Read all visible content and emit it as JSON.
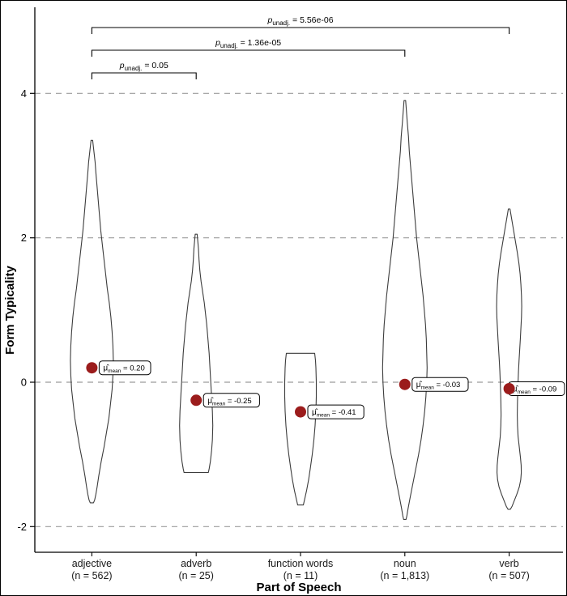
{
  "figure": {
    "background": "#ffffff",
    "border_color": "#000000"
  },
  "chart_data": {
    "type": "violin",
    "title": "",
    "xlabel": "Part of Speech",
    "ylabel": "Form Typicality",
    "ylim": [
      -2.6,
      5.3
    ],
    "yticks": [
      -2,
      0,
      2,
      4
    ],
    "grid": "dashed-horizontal",
    "gridline_color": "#9c9c9c",
    "violin_stroke": "#3c3c3c",
    "mean_dot_color": "#9b1c1c",
    "mu_hat_symbol": "μ̂",
    "mean_subscript": "mean",
    "p_symbol": "p",
    "p_subscript": "unadj.",
    "categories": [
      {
        "label": "adjective",
        "n_label": "(n = 562)",
        "mean": 0.2,
        "mean_text": "= 0.20",
        "range": [
          -1.67,
          3.35
        ],
        "profile": [
          [
            3.35,
            1
          ],
          [
            3.2,
            2.5
          ],
          [
            3.05,
            4
          ],
          [
            2.9,
            5
          ],
          [
            2.7,
            6.5
          ],
          [
            2.5,
            8
          ],
          [
            2.3,
            9.5
          ],
          [
            2.1,
            11
          ],
          [
            1.9,
            13
          ],
          [
            1.7,
            15
          ],
          [
            1.5,
            17
          ],
          [
            1.3,
            19
          ],
          [
            1.1,
            21.5
          ],
          [
            0.9,
            23.5
          ],
          [
            0.7,
            25
          ],
          [
            0.5,
            26
          ],
          [
            0.3,
            26.5
          ],
          [
            0.1,
            26
          ],
          [
            -0.1,
            25
          ],
          [
            -0.3,
            23
          ],
          [
            -0.5,
            21
          ],
          [
            -0.7,
            18
          ],
          [
            -0.9,
            15
          ],
          [
            -1.1,
            11.5
          ],
          [
            -1.3,
            8.5
          ],
          [
            -1.45,
            6.5
          ],
          [
            -1.55,
            5
          ],
          [
            -1.63,
            3.5
          ],
          [
            -1.67,
            2
          ]
        ]
      },
      {
        "label": "adverb",
        "n_label": "(n = 25)",
        "mean": -0.25,
        "mean_text": "= -0.25",
        "range": [
          -1.25,
          2.05
        ],
        "profile": [
          [
            2.05,
            1.2
          ],
          [
            1.95,
            2
          ],
          [
            1.85,
            2.8
          ],
          [
            1.7,
            3.5
          ],
          [
            1.55,
            4.5
          ],
          [
            1.4,
            6
          ],
          [
            1.25,
            8
          ],
          [
            1.1,
            10
          ],
          [
            0.95,
            11.5
          ],
          [
            0.8,
            13
          ],
          [
            0.6,
            14.5
          ],
          [
            0.4,
            16
          ],
          [
            0.2,
            17
          ],
          [
            0.0,
            18
          ],
          [
            -0.2,
            19
          ],
          [
            -0.4,
            20
          ],
          [
            -0.6,
            20.5
          ],
          [
            -0.8,
            20
          ],
          [
            -0.95,
            19
          ],
          [
            -1.1,
            17.5
          ],
          [
            -1.2,
            16
          ],
          [
            -1.25,
            15
          ]
        ]
      },
      {
        "label": "function words",
        "n_label": "(n = 11)",
        "mean": -0.41,
        "mean_text": "= -0.41",
        "range": [
          -1.7,
          0.4
        ],
        "profile": [
          [
            0.4,
            17.5
          ],
          [
            0.3,
            18.5
          ],
          [
            0.2,
            19
          ],
          [
            0.0,
            19.5
          ],
          [
            -0.2,
            19.5
          ],
          [
            -0.4,
            19
          ],
          [
            -0.6,
            18
          ],
          [
            -0.8,
            16.5
          ],
          [
            -1.0,
            14.5
          ],
          [
            -1.2,
            12
          ],
          [
            -1.35,
            10
          ],
          [
            -1.5,
            7.5
          ],
          [
            -1.6,
            5.5
          ],
          [
            -1.7,
            3.5
          ]
        ]
      },
      {
        "label": "noun",
        "n_label": "(n = 1,813)",
        "mean": -0.03,
        "mean_text": "= -0.03",
        "range": [
          -1.9,
          3.9
        ],
        "profile": [
          [
            3.9,
            1
          ],
          [
            3.75,
            2
          ],
          [
            3.6,
            3
          ],
          [
            3.4,
            4.5
          ],
          [
            3.2,
            5.5
          ],
          [
            3.0,
            7
          ],
          [
            2.8,
            8.5
          ],
          [
            2.6,
            10
          ],
          [
            2.4,
            11.5
          ],
          [
            2.2,
            13
          ],
          [
            2.0,
            14.5
          ],
          [
            1.8,
            16.5
          ],
          [
            1.6,
            18.5
          ],
          [
            1.4,
            20.5
          ],
          [
            1.2,
            22.5
          ],
          [
            1.0,
            24
          ],
          [
            0.8,
            25.5
          ],
          [
            0.6,
            26.5
          ],
          [
            0.4,
            27
          ],
          [
            0.2,
            27.5
          ],
          [
            0.0,
            27
          ],
          [
            -0.2,
            26
          ],
          [
            -0.4,
            24.5
          ],
          [
            -0.6,
            22.5
          ],
          [
            -0.8,
            20
          ],
          [
            -1.0,
            17
          ],
          [
            -1.2,
            13.5
          ],
          [
            -1.4,
            10
          ],
          [
            -1.6,
            6.5
          ],
          [
            -1.75,
            4
          ],
          [
            -1.85,
            2.5
          ],
          [
            -1.9,
            1.5
          ]
        ]
      },
      {
        "label": "verb",
        "n_label": "(n = 507)",
        "mean": -0.09,
        "mean_text": "= -0.09",
        "range": [
          -1.76,
          2.4
        ],
        "profile": [
          [
            2.4,
            1
          ],
          [
            2.3,
            2.5
          ],
          [
            2.2,
            4
          ],
          [
            2.1,
            5.5
          ],
          [
            2.0,
            7
          ],
          [
            1.9,
            8.5
          ],
          [
            1.8,
            10
          ],
          [
            1.65,
            12
          ],
          [
            1.5,
            13.5
          ],
          [
            1.35,
            14.5
          ],
          [
            1.2,
            15.2
          ],
          [
            1.05,
            15.5
          ],
          [
            0.9,
            15.2
          ],
          [
            0.75,
            14.5
          ],
          [
            0.6,
            13.8
          ],
          [
            0.45,
            13
          ],
          [
            0.3,
            12.2
          ],
          [
            0.15,
            11.5
          ],
          [
            0.0,
            11
          ],
          [
            -0.15,
            10.5
          ],
          [
            -0.3,
            10.2
          ],
          [
            -0.45,
            10
          ],
          [
            -0.6,
            10.3
          ],
          [
            -0.75,
            11
          ],
          [
            -0.9,
            12.5
          ],
          [
            -1.05,
            14
          ],
          [
            -1.15,
            14.8
          ],
          [
            -1.25,
            15
          ],
          [
            -1.35,
            14.3
          ],
          [
            -1.45,
            12.5
          ],
          [
            -1.55,
            9.5
          ],
          [
            -1.65,
            6
          ],
          [
            -1.72,
            3.5
          ],
          [
            -1.76,
            1.5
          ]
        ]
      }
    ],
    "comparisons": [
      {
        "from": 0,
        "to": 4,
        "p_text": "= 5.56e-06"
      },
      {
        "from": 0,
        "to": 3,
        "p_text": "= 1.36e-05"
      },
      {
        "from": 0,
        "to": 1,
        "p_text": "= 0.05"
      }
    ]
  }
}
